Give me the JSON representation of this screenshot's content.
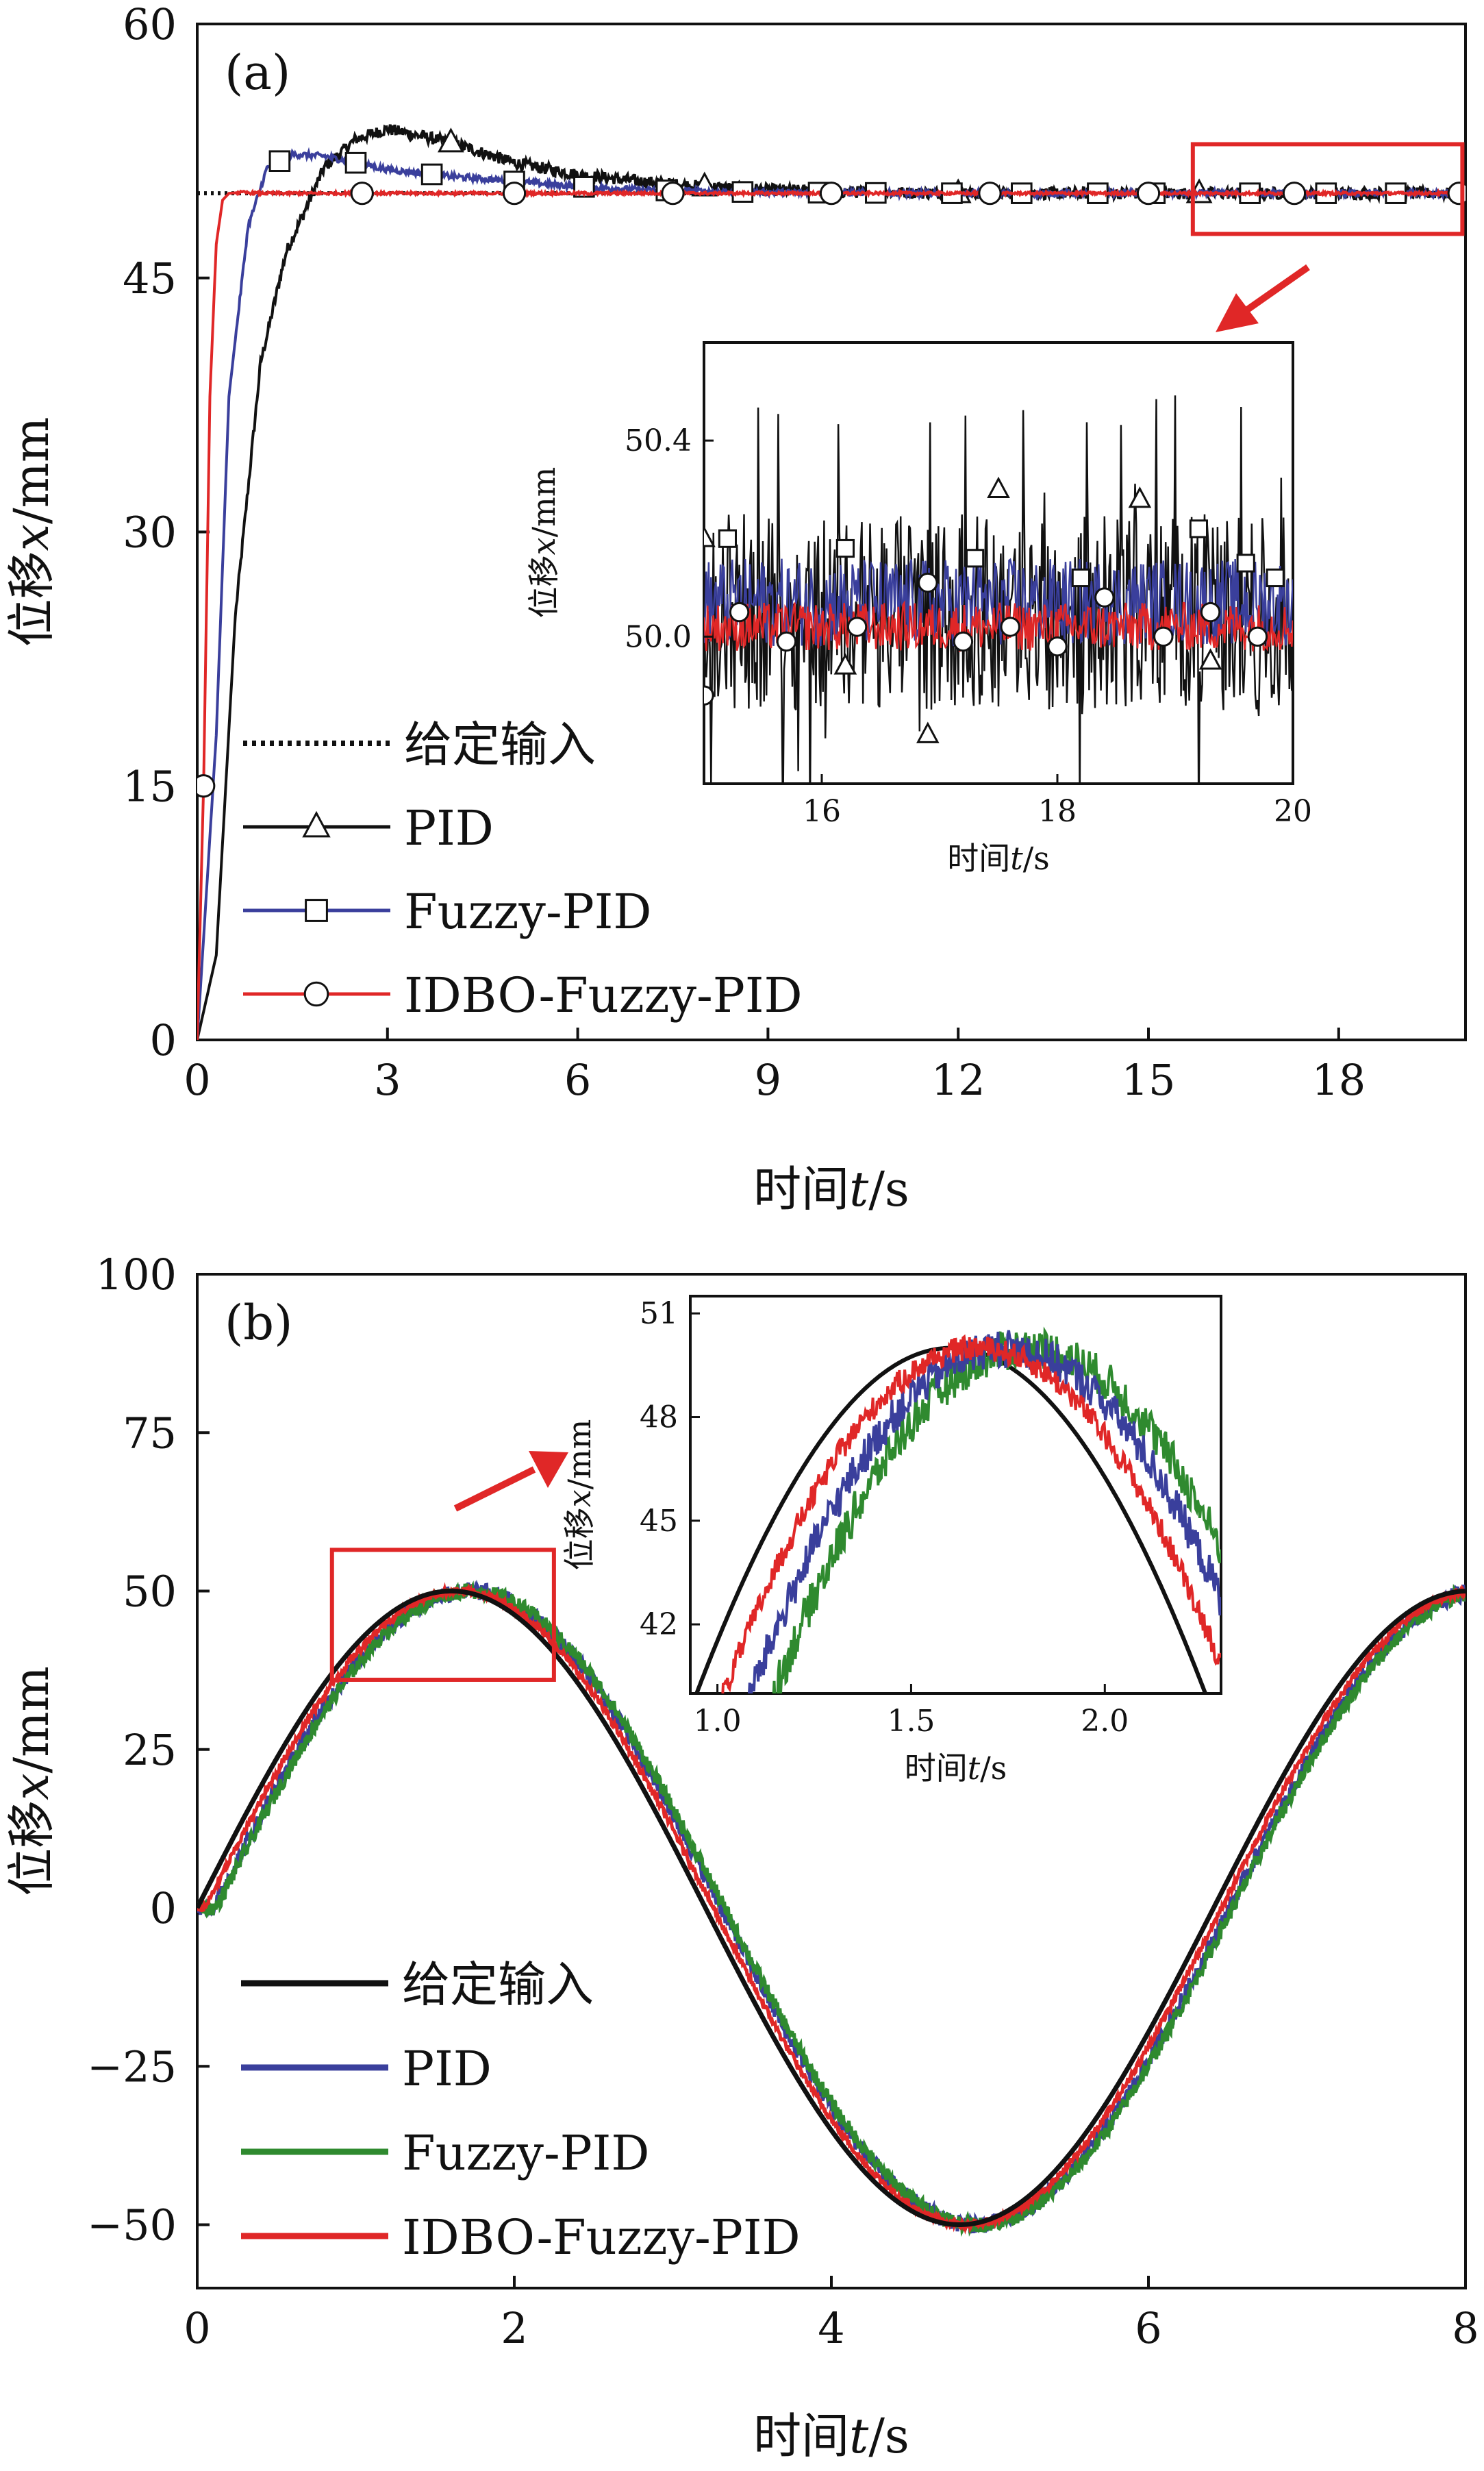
{
  "chart_data": [
    {
      "id": "a",
      "type": "line",
      "panel_label": "(a)",
      "xlabel_prefix": "时间",
      "xlabel_var": "t",
      "xlabel_unit": "/s",
      "ylabel_prefix": "位移",
      "ylabel_var": "x",
      "ylabel_unit": "/mm",
      "xlim": [
        0,
        20
      ],
      "ylim": [
        0,
        60
      ],
      "xticks": [
        0,
        3,
        6,
        9,
        12,
        15,
        18
      ],
      "yticks": [
        0,
        15,
        30,
        45,
        60
      ],
      "legend_position": "lower-left",
      "legend": [
        {
          "label": "给定输入",
          "color": "#111111",
          "style": "dotted",
          "marker": "none"
        },
        {
          "label": "PID",
          "color": "#111111",
          "style": "solid",
          "marker": "triangle"
        },
        {
          "label": "Fuzzy-PID",
          "color": "#3a3f9c",
          "style": "solid",
          "marker": "square"
        },
        {
          "label": "IDBO-Fuzzy-PID",
          "color": "#e02727",
          "style": "solid",
          "marker": "circle"
        }
      ],
      "series": [
        {
          "name": "给定输入",
          "x": [
            0,
            20
          ],
          "y": [
            50,
            50
          ]
        },
        {
          "name": "PID",
          "x": [
            0,
            0.3,
            0.6,
            1.0,
            1.4,
            2.0,
            2.5,
            3.0,
            4.0,
            5.0,
            6.0,
            7.0,
            8.0,
            9.0,
            10.0,
            12.0,
            15.0,
            20.0
          ],
          "y": [
            0,
            5,
            25,
            40,
            46.5,
            51.5,
            53.2,
            53.8,
            53.0,
            51.8,
            51.1,
            50.7,
            50.4,
            50.2,
            50.1,
            50.0,
            50.0,
            50.0
          ]
        },
        {
          "name": "Fuzzy-PID",
          "x": [
            0,
            0.3,
            0.5,
            0.8,
            1.1,
            1.5,
            2.0,
            2.5,
            3.0,
            4.0,
            5.0,
            6.0,
            7.0,
            9.0,
            12.0,
            20.0
          ],
          "y": [
            0,
            18,
            38,
            48,
            51.5,
            52.3,
            52.2,
            51.8,
            51.4,
            51.0,
            50.7,
            50.4,
            50.2,
            50.05,
            50.0,
            50.0
          ]
        },
        {
          "name": "IDBO-Fuzzy-PID",
          "x": [
            0,
            0.1,
            0.2,
            0.3,
            0.4,
            0.5,
            0.7,
            1.0,
            20.0
          ],
          "y": [
            0,
            15,
            38,
            47,
            49.6,
            50.0,
            50.05,
            50.0,
            50.0
          ]
        }
      ],
      "inset": {
        "xlabel_prefix": "时间",
        "xlabel_var": "t",
        "xlabel_unit": "/s",
        "ylabel_prefix": "位移",
        "ylabel_var": "x",
        "ylabel_unit": "/mm",
        "xlim": [
          15,
          20
        ],
        "ylim": [
          49.7,
          50.6
        ],
        "xticks": [
          16,
          18,
          20
        ],
        "yticks": [
          50.0,
          50.4
        ],
        "ytick_labels": [
          "50.0",
          "50.4"
        ],
        "noise_amplitude": {
          "PID": 0.2,
          "Fuzzy-PID": 0.09,
          "IDBO-Fuzzy-PID": 0.05
        },
        "series_center": {
          "PID": 50.05,
          "Fuzzy-PID": 50.07,
          "IDBO-Fuzzy-PID": 50.02
        }
      }
    },
    {
      "id": "b",
      "type": "line",
      "panel_label": "(b)",
      "xlabel_prefix": "时间",
      "xlabel_var": "t",
      "xlabel_unit": "/s",
      "ylabel_prefix": "位移",
      "ylabel_var": "x",
      "ylabel_unit": "/mm",
      "xlim": [
        0,
        8
      ],
      "ylim": [
        -60,
        100
      ],
      "xticks": [
        0,
        2,
        4,
        6,
        8
      ],
      "yticks": [
        -50,
        -25,
        0,
        25,
        50,
        75,
        100
      ],
      "ytick_labels": [
        "−50",
        "−25",
        "0",
        "25",
        "50",
        "75",
        "100"
      ],
      "legend_position": "lower-left",
      "legend": [
        {
          "label": "给定输入",
          "color": "#111111"
        },
        {
          "label": "PID",
          "color": "#3a3f9c"
        },
        {
          "label": "Fuzzy-PID",
          "color": "#2f8a2f"
        },
        {
          "label": "IDBO-Fuzzy-PID",
          "color": "#e02727"
        }
      ],
      "series": [
        {
          "name": "给定输入",
          "amplitude": 50,
          "omega": 0.98,
          "lag": 0.0,
          "noise": 0
        },
        {
          "name": "PID",
          "amplitude": 50,
          "omega": 0.98,
          "lag": 0.1,
          "noise": 1.4
        },
        {
          "name": "Fuzzy-PID",
          "amplitude": 50,
          "omega": 0.98,
          "lag": 0.12,
          "noise": 1.2
        },
        {
          "name": "IDBO-Fuzzy-PID",
          "amplitude": 50,
          "omega": 0.98,
          "lag": 0.05,
          "noise": 0.6
        }
      ],
      "inset": {
        "xlabel_prefix": "时间",
        "xlabel_var": "t",
        "xlabel_unit": "/s",
        "ylabel_prefix": "位移",
        "ylabel_var": "x",
        "ylabel_unit": "/mm",
        "xlim": [
          0.93,
          2.3
        ],
        "ylim": [
          40,
          51.5
        ],
        "xticks": [
          1.0,
          1.5,
          2.0
        ],
        "xtick_labels": [
          "1.0",
          "1.5",
          "2.0"
        ],
        "yticks": [
          42,
          45,
          48,
          51
        ]
      }
    }
  ],
  "colors": {
    "axis": "#111111",
    "highlight": "#e02727",
    "pid_blue": "#3a3f9c",
    "fuzzy_green": "#2f8a2f",
    "idbo_red": "#e02727",
    "reference_black": "#111111"
  }
}
